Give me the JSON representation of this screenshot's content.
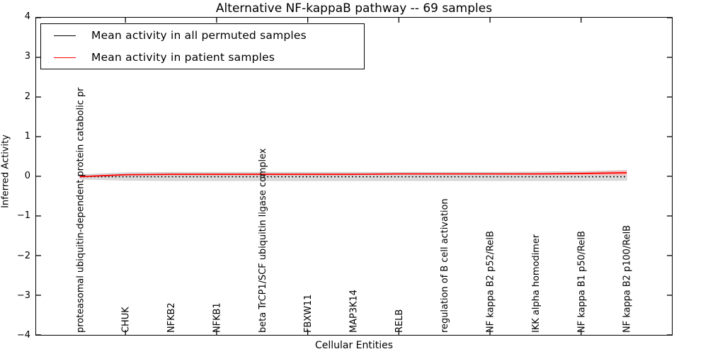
{
  "chart_data": {
    "type": "line",
    "title": "Alternative NF-kappaB pathway -- 69 samples",
    "xlabel": "Cellular Entities",
    "ylabel": "Inferred Activity",
    "ylim": [
      -4,
      4
    ],
    "yticks": [
      -4,
      -3,
      -2,
      -1,
      0,
      1,
      2,
      3,
      4
    ],
    "xlim_index_units": [
      -1,
      13
    ],
    "grid": false,
    "legend_position": "upper left",
    "x_tick_marks_at_indices": [
      1,
      3,
      5,
      7,
      9,
      11
    ],
    "x_tick_label_rotation_deg": 90,
    "categories": [
      "proteasomal ubiquitin-dependent protein catabolic pr",
      "CHUK",
      "NFKB2",
      "NFKB1",
      "beta TrCP1/SCF ubiquitin ligase complex",
      "FBXW11",
      "MAP3K14",
      "RELB",
      "regulation of B cell activation",
      "NF kappa B2 p52/RelB",
      "IKK alpha homodimer",
      "NF kappa B1 p50/RelB",
      "NF kappa B2 p100/RelB"
    ],
    "series": [
      {
        "name": "Mean activity in all permuted samples",
        "color": "#000000",
        "line_style": "dotted",
        "values": [
          -0.01,
          -0.01,
          -0.01,
          -0.01,
          -0.01,
          -0.01,
          -0.01,
          -0.01,
          -0.01,
          -0.01,
          -0.01,
          -0.01,
          -0.01
        ]
      },
      {
        "name": "Mean activity in patient samples",
        "color": "#ff0000",
        "line_style": "solid",
        "values": [
          -0.01,
          0.04,
          0.05,
          0.05,
          0.05,
          0.05,
          0.05,
          0.06,
          0.06,
          0.06,
          0.06,
          0.07,
          0.09
        ]
      }
    ],
    "bands": [
      {
        "for_series": "Mean activity in all permuted samples",
        "color": "#d8d8d8",
        "edge_color": "#c4c4c4",
        "upper": [
          0.04,
          0.09,
          0.1,
          0.1,
          0.1,
          0.1,
          0.1,
          0.1,
          0.1,
          0.1,
          0.11,
          0.12,
          0.15
        ],
        "lower": [
          -0.07,
          -0.1,
          -0.11,
          -0.11,
          -0.11,
          -0.11,
          -0.11,
          -0.11,
          -0.11,
          -0.11,
          -0.11,
          -0.11,
          -0.1
        ]
      },
      {
        "for_series": "Mean activity in patient samples",
        "color": "#f5b8b8",
        "edge_color": "#f5b8b8",
        "upper": [
          0.0,
          0.05,
          0.06,
          0.06,
          0.06,
          0.06,
          0.06,
          0.07,
          0.07,
          0.07,
          0.08,
          0.09,
          0.14
        ],
        "lower": [
          -0.02,
          0.03,
          0.04,
          0.04,
          0.04,
          0.04,
          0.04,
          0.05,
          0.05,
          0.05,
          0.04,
          0.04,
          0.03
        ]
      }
    ]
  }
}
